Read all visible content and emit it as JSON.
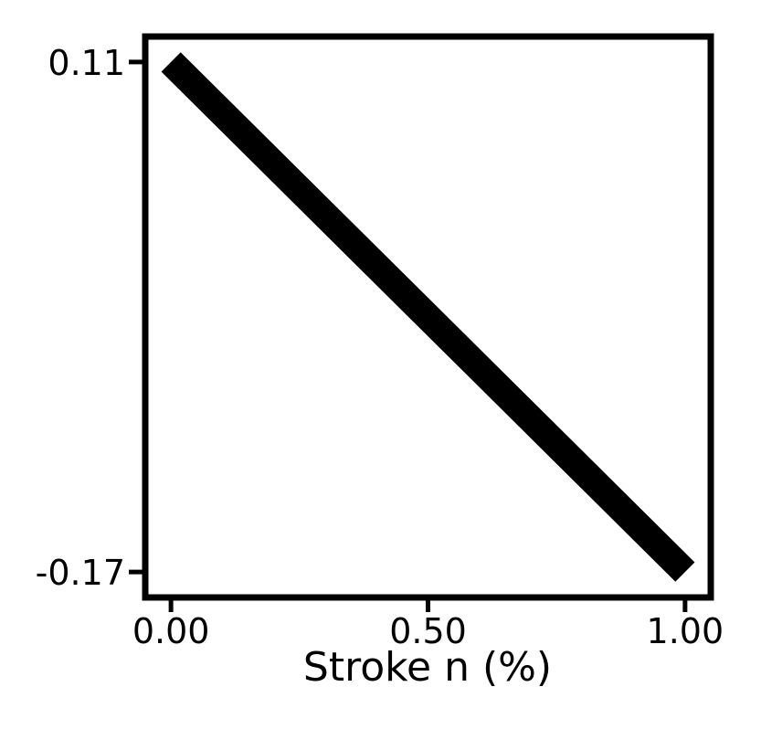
{
  "chart_data": {
    "type": "line",
    "title": "",
    "xlabel": "Stroke n (%)",
    "ylabel": "",
    "x": [
      0.0,
      1.0
    ],
    "series": [
      {
        "values": [
          0.11,
          -0.17
        ]
      }
    ],
    "xlim": [
      -0.05,
      1.05
    ],
    "ylim": [
      -0.184,
      0.124
    ],
    "xticks": [
      0.0,
      0.5,
      1.0
    ],
    "xtick_labels": [
      "0.00",
      "0.50",
      "1.00"
    ],
    "yticks": [
      0.11,
      -0.17
    ],
    "ytick_labels": [
      "0.11",
      "-0.17"
    ],
    "grid": false,
    "legend": "none",
    "colors": {
      "line": "#000000",
      "frame": "#000000",
      "background": "#ffffff"
    }
  }
}
